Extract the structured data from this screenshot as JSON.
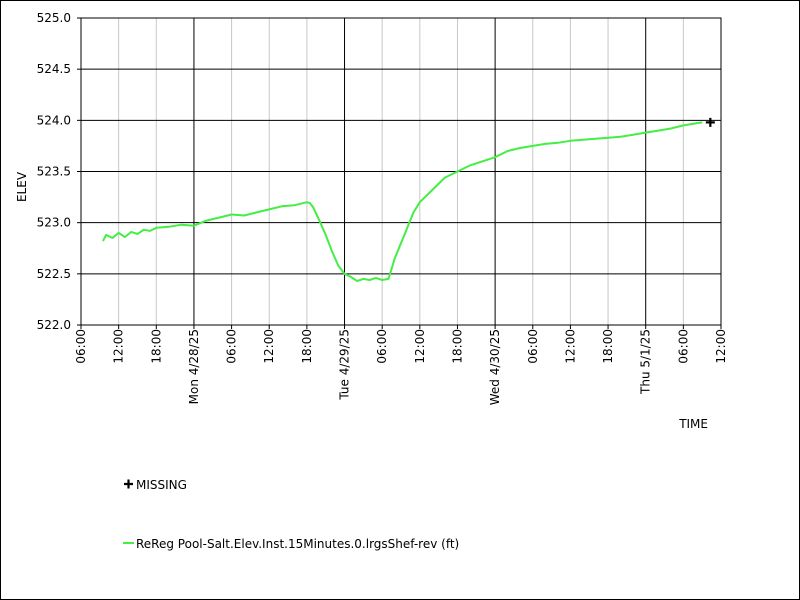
{
  "chart_data": {
    "type": "line",
    "title": "",
    "xlabel": "TIME",
    "ylabel": "ELEV",
    "ylim": [
      522.0,
      525.0
    ],
    "xlim_hours": [
      0,
      102
    ],
    "grid": true,
    "legend_placement": "bottom-left",
    "y_ticks": [
      {
        "value": 522.0,
        "label": "522.0"
      },
      {
        "value": 522.5,
        "label": "522.5"
      },
      {
        "value": 523.0,
        "label": "523.0"
      },
      {
        "value": 523.5,
        "label": "523.5"
      },
      {
        "value": 524.0,
        "label": "524.0"
      },
      {
        "value": 524.5,
        "label": "524.5"
      },
      {
        "value": 525.0,
        "label": "525.0"
      }
    ],
    "x_ticks": [
      {
        "hour": 0,
        "label": "06:00",
        "major": false
      },
      {
        "hour": 6,
        "label": "12:00",
        "major": false
      },
      {
        "hour": 12,
        "label": "18:00",
        "major": false
      },
      {
        "hour": 18,
        "label": "Mon 4/28/25",
        "major": true
      },
      {
        "hour": 24,
        "label": "06:00",
        "major": false
      },
      {
        "hour": 30,
        "label": "12:00",
        "major": false
      },
      {
        "hour": 36,
        "label": "18:00",
        "major": false
      },
      {
        "hour": 42,
        "label": "Tue 4/29/25",
        "major": true
      },
      {
        "hour": 48,
        "label": "06:00",
        "major": false
      },
      {
        "hour": 54,
        "label": "12:00",
        "major": false
      },
      {
        "hour": 60,
        "label": "18:00",
        "major": false
      },
      {
        "hour": 66,
        "label": "Wed 4/30/25",
        "major": true
      },
      {
        "hour": 72,
        "label": "06:00",
        "major": false
      },
      {
        "hour": 78,
        "label": "12:00",
        "major": false
      },
      {
        "hour": 84,
        "label": "18:00",
        "major": false
      },
      {
        "hour": 90,
        "label": "Thu 5/1/25",
        "major": true
      },
      {
        "hour": 96,
        "label": "06:00",
        "major": false
      },
      {
        "hour": 102,
        "label": "12:00",
        "major": false
      }
    ],
    "series": [
      {
        "name": "ReReg Pool-Salt.Elev.Inst.15Minutes.0.lrgsShef-rev (ft)",
        "color": "#44ee44",
        "x_hours": [
          3.5,
          4,
          5,
          6,
          7,
          8,
          9,
          10,
          11,
          12,
          14,
          16,
          18,
          20,
          22,
          24,
          26,
          28,
          30,
          32,
          34,
          36,
          36.5,
          37,
          38,
          39,
          40,
          41,
          42,
          43,
          44,
          45,
          46,
          47,
          48,
          49,
          49.5,
          50,
          51,
          52,
          53,
          54,
          56,
          58,
          60,
          62,
          64,
          66,
          68,
          70,
          72,
          74,
          76,
          78,
          80,
          82,
          84,
          86,
          88,
          90,
          92,
          94,
          96,
          98,
          99
        ],
        "y": [
          522.82,
          522.88,
          522.85,
          522.9,
          522.86,
          522.91,
          522.89,
          522.93,
          522.92,
          522.95,
          522.96,
          522.98,
          522.97,
          523.02,
          523.05,
          523.08,
          523.07,
          523.1,
          523.13,
          523.16,
          523.17,
          523.2,
          523.19,
          523.15,
          523.02,
          522.88,
          522.72,
          522.58,
          522.5,
          522.47,
          522.43,
          522.45,
          522.44,
          522.46,
          522.44,
          522.45,
          522.55,
          522.65,
          522.8,
          522.95,
          523.1,
          523.2,
          523.32,
          523.44,
          523.5,
          523.56,
          523.6,
          523.64,
          523.7,
          523.73,
          523.75,
          523.77,
          523.78,
          523.8,
          523.81,
          523.82,
          523.83,
          523.84,
          523.86,
          523.88,
          523.9,
          523.92,
          523.95,
          523.97,
          523.98
        ]
      }
    ],
    "missing_markers": [
      {
        "x_hours": 100.3,
        "y": 523.98
      }
    ],
    "legend": [
      {
        "symbol": "plus",
        "label": "MISSING",
        "color": "#000000"
      },
      {
        "symbol": "line",
        "label": "ReReg Pool-Salt.Elev.Inst.15Minutes.0.lrgsShef-rev (ft)",
        "color": "#44ee44"
      }
    ]
  }
}
